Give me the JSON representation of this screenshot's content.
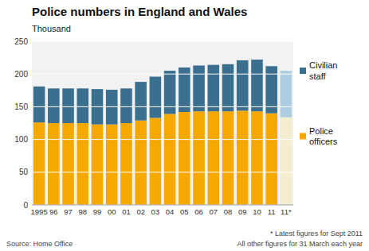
{
  "chart_data": {
    "type": "bar",
    "stacked": true,
    "title": "Police numbers in England and Wales",
    "y_label": "Thousand",
    "annotations": [
      "Source: Home Office",
      "* Latest figures for Sept 2011",
      "All other figures for 31 March each year"
    ],
    "categories": [
      "1995",
      "96",
      "97",
      "98",
      "99",
      "00",
      "01",
      "02",
      "03",
      "04",
      "05",
      "06",
      "07",
      "08",
      "09",
      "10",
      "11",
      "11*"
    ],
    "series": [
      {
        "name": "Police\nofficers",
        "color": "#F5A800",
        "colors": [
          "#F5A800",
          "#F5A800",
          "#F5A800",
          "#F5A800",
          "#F5A800",
          "#F5A800",
          "#F5A800",
          "#F5A800",
          "#F5A800",
          "#F5A800",
          "#F5A800",
          "#F5A800",
          "#F5A800",
          "#F5A800",
          "#F5A800",
          "#F5A800",
          "#F5A800",
          "#F5EDD0"
        ],
        "values": [
          126,
          125,
          125,
          125,
          123,
          123,
          125,
          129,
          133,
          139,
          142,
          143,
          143,
          143,
          144,
          143,
          140,
          134
        ]
      },
      {
        "name": "Civilian\nstaff",
        "color": "#3A6F8F",
        "colors": [
          "#3A6F8F",
          "#3A6F8F",
          "#3A6F8F",
          "#3A6F8F",
          "#3A6F8F",
          "#3A6F8F",
          "#3A6F8F",
          "#3A6F8F",
          "#3A6F8F",
          "#3A6F8F",
          "#3A6F8F",
          "#3A6F8F",
          "#3A6F8F",
          "#3A6F8F",
          "#3A6F8F",
          "#3A6F8F",
          "#3A6F8F",
          "#AECDE0"
        ],
        "values": [
          55,
          53,
          53,
          53,
          54,
          53,
          53,
          59,
          63,
          66,
          68,
          70,
          71,
          72,
          77,
          79,
          72,
          71
        ]
      }
    ],
    "ylim": [
      0,
      250
    ],
    "yticks": [
      0,
      50,
      100,
      150,
      200,
      250
    ],
    "grid": true,
    "legend": "right"
  }
}
